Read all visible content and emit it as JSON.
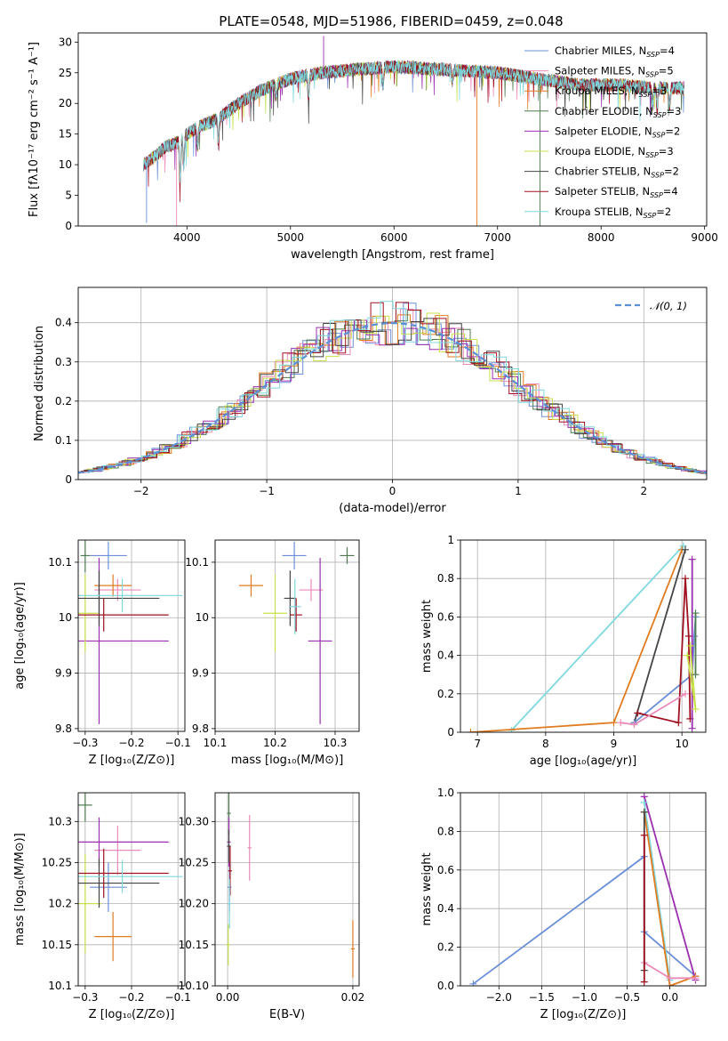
{
  "title": "PLATE=0548, MJD=51986, FIBERID=0459, z=0.048",
  "colors": {
    "Chabrier MILES": "#6a8fd8",
    "Salpeter MILES": "#e98bb8",
    "Kroupa MILES": "#e07b20",
    "Chabrier ELODIE": "#4f7a4f",
    "Salpeter ELODIE": "#9b2fb0",
    "Kroupa ELODIE": "#c8e04a",
    "Chabrier STELIB": "#444444",
    "Salpeter STELIB": "#a01020",
    "Kroupa STELIB": "#7fd8de",
    "normal": "#5b8fd6"
  },
  "legend_spectrum": [
    {
      "pre": "Chabrier MILES, N",
      "sub": "SSP",
      "post": "=4"
    },
    {
      "pre": "Salpeter MILES, N",
      "sub": "SSP",
      "post": "=5"
    },
    {
      "pre": "Kroupa MILES, N",
      "sub": "SSP",
      "post": "=3"
    },
    {
      "pre": "Chabrier ELODIE, N",
      "sub": "SSP",
      "post": "=3"
    },
    {
      "pre": "Salpeter ELODIE, N",
      "sub": "SSP",
      "post": "=2"
    },
    {
      "pre": "Kroupa ELODIE, N",
      "sub": "SSP",
      "post": "=3"
    },
    {
      "pre": "Chabrier STELIB, N",
      "sub": "SSP",
      "post": "=2"
    },
    {
      "pre": "Salpeter STELIB, N",
      "sub": "SSP",
      "post": "=4"
    },
    {
      "pre": "Kroupa STELIB, N",
      "sub": "SSP",
      "post": "=2"
    }
  ],
  "chart_data": [
    {
      "id": "spectrum",
      "type": "line",
      "xlabel": "wavelength [Angstrom, rest frame]",
      "ylabel": "Flux [fλ10⁻¹⁷ erg cm⁻² s⁻¹ A⁻¹]",
      "xlim": [
        2950,
        9020
      ],
      "ylim": [
        0,
        31.5
      ],
      "xticks": [
        4000,
        5000,
        6000,
        7000,
        8000,
        9000
      ],
      "yticks": [
        0,
        5,
        10,
        15,
        20,
        25,
        30
      ],
      "continuum": [
        [
          3580,
          10
        ],
        [
          3700,
          11.5
        ],
        [
          3800,
          13
        ],
        [
          3900,
          13.5
        ],
        [
          4000,
          15
        ],
        [
          4100,
          16
        ],
        [
          4300,
          17.5
        ],
        [
          4500,
          20
        ],
        [
          4700,
          22
        ],
        [
          5000,
          24
        ],
        [
          5300,
          25
        ],
        [
          5600,
          25.5
        ],
        [
          6000,
          26
        ],
        [
          6500,
          25.5
        ],
        [
          7000,
          25
        ],
        [
          7400,
          24
        ],
        [
          7800,
          23
        ],
        [
          8200,
          23
        ],
        [
          8500,
          22.5
        ],
        [
          8800,
          22.5
        ]
      ],
      "absorption": [
        [
          3934,
          6.5
        ],
        [
          3969,
          5
        ],
        [
          4102,
          3
        ],
        [
          4304,
          4
        ],
        [
          4861,
          2
        ],
        [
          5175,
          4
        ],
        [
          5893,
          3
        ],
        [
          6563,
          2
        ],
        [
          8498,
          3
        ],
        [
          8542,
          3.5
        ],
        [
          8662,
          3
        ]
      ],
      "spikes": [
        [
          3610,
          0.5
        ],
        [
          3900,
          0
        ],
        [
          6800,
          0
        ],
        [
          7410,
          0
        ],
        [
          5320,
          31
        ]
      ]
    },
    {
      "id": "residuals",
      "type": "histogram",
      "xlabel": "(data-model)/error",
      "ylabel": "Normed distribution",
      "xlim": [
        -2.5,
        2.5
      ],
      "ylim": [
        0,
        0.49
      ],
      "xticks": [
        -2,
        -1,
        0,
        1,
        2
      ],
      "yticks": [
        0.0,
        0.1,
        0.2,
        0.3,
        0.4
      ],
      "bin_width": 0.105,
      "reference": {
        "label": "𝒩(0, 1)",
        "mean": 0,
        "sigma": 1
      }
    },
    {
      "id": "age_vs_Z",
      "type": "scatter",
      "xlabel": "Z [log₁₀(Z/Z⊙)]",
      "ylabel": "age  [log₁₀(age/yr)]",
      "xlim": [
        -0.315,
        -0.085
      ],
      "ylim": [
        9.795,
        10.14
      ],
      "xticks": [
        -0.3,
        -0.2,
        -0.1
      ],
      "yticks": [
        9.8,
        9.9,
        10.0,
        10.1
      ],
      "points": [
        {
          "s": "Chabrier MILES",
          "x": -0.25,
          "y": 10.112,
          "ex": 0.04,
          "ey": 0.025
        },
        {
          "s": "Salpeter MILES",
          "x": -0.23,
          "y": 10.05,
          "ex": 0.05,
          "ey": 0.02
        },
        {
          "s": "Kroupa MILES",
          "x": -0.24,
          "y": 10.058,
          "ex": 0.04,
          "ey": 0.02
        },
        {
          "s": "Chabrier ELODIE",
          "x": -0.3,
          "y": 10.112,
          "ex": 0.01,
          "ey": 0.03
        },
        {
          "s": "Salpeter ELODIE",
          "x": -0.27,
          "y": 9.958,
          "ex": 0.15,
          "ey": 0.15
        },
        {
          "s": "Kroupa ELODIE",
          "x": -0.3,
          "y": 10.008,
          "ex": 0.03,
          "ey": 0.07
        },
        {
          "s": "Chabrier STELIB",
          "x": -0.27,
          "y": 10.035,
          "ex": 0.13,
          "ey": 0.05
        },
        {
          "s": "Salpeter STELIB",
          "x": -0.26,
          "y": 10.005,
          "ex": 0.14,
          "ey": 0.03
        },
        {
          "s": "Kroupa STELIB",
          "x": -0.22,
          "y": 10.04,
          "ex": 0.13,
          "ey": 0.03
        }
      ]
    },
    {
      "id": "age_vs_mass",
      "type": "scatter",
      "xlabel": "mass [log₁₀(M/M⊙)]",
      "ylabel": "",
      "xlim": [
        10.1,
        10.34
      ],
      "ylim": [
        9.795,
        10.14
      ],
      "xticks": [
        10.1,
        10.2,
        10.3
      ],
      "yticks": [
        9.8,
        9.9,
        10.0,
        10.1
      ],
      "points": [
        {
          "s": "Chabrier MILES",
          "x": 10.232,
          "y": 10.112,
          "ex": 0.02,
          "ey": 0.025
        },
        {
          "s": "Salpeter MILES",
          "x": 10.26,
          "y": 10.05,
          "ex": 0.02,
          "ey": 0.02
        },
        {
          "s": "Kroupa MILES",
          "x": 10.16,
          "y": 10.058,
          "ex": 0.02,
          "ey": 0.02
        },
        {
          "s": "Chabrier ELODIE",
          "x": 10.32,
          "y": 10.112,
          "ex": 0.012,
          "ey": 0.015
        },
        {
          "s": "Salpeter ELODIE",
          "x": 10.275,
          "y": 9.958,
          "ex": 0.02,
          "ey": 0.15
        },
        {
          "s": "Kroupa ELODIE",
          "x": 10.2,
          "y": 10.008,
          "ex": 0.02,
          "ey": 0.07
        },
        {
          "s": "Chabrier STELIB",
          "x": 10.225,
          "y": 10.035,
          "ex": 0.01,
          "ey": 0.05
        },
        {
          "s": "Salpeter STELIB",
          "x": 10.235,
          "y": 10.005,
          "ex": 0.01,
          "ey": 0.03
        },
        {
          "s": "Kroupa STELIB",
          "x": 10.233,
          "y": 10.02,
          "ex": 0.01,
          "ey": 0.05
        }
      ]
    },
    {
      "id": "weight_vs_age",
      "type": "line",
      "xlabel": "age  [log₁₀(age/yr)]",
      "ylabel": "mass weight",
      "xlim": [
        6.75,
        10.35
      ],
      "ylim": [
        0,
        1.0
      ],
      "xticks": [
        7,
        8,
        9,
        10
      ],
      "yticks": [
        0.0,
        0.2,
        0.4,
        0.6,
        0.8,
        1.0
      ],
      "series": [
        {
          "s": "Kroupa STELIB",
          "x": [
            7.5,
            10.02
          ],
          "y": [
            0.01,
            0.97
          ]
        },
        {
          "s": "Kroupa MILES",
          "x": [
            6.9,
            9.0,
            10.0
          ],
          "y": [
            0.0,
            0.05,
            0.95
          ]
        },
        {
          "s": "Chabrier STELIB",
          "x": [
            9.3,
            10.05
          ],
          "y": [
            0.05,
            0.95
          ]
        },
        {
          "s": "Chabrier MILES",
          "x": [
            9.3,
            10.15,
            10.18,
            10.2
          ],
          "y": [
            0.05,
            0.3,
            0.5,
            0.6
          ]
        },
        {
          "s": "Salpeter STELIB",
          "x": [
            9.35,
            9.95,
            10.05,
            10.1,
            10.12
          ],
          "y": [
            0.1,
            0.05,
            0.8,
            0.5,
            0.07
          ]
        },
        {
          "s": "Salpeter MILES",
          "x": [
            9.1,
            9.3,
            10.05
          ],
          "y": [
            0.05,
            0.04,
            0.2
          ]
        },
        {
          "s": "Salpeter ELODIE",
          "x": [
            10.15,
            10.15
          ],
          "y": [
            0.02,
            0.9
          ]
        },
        {
          "s": "Kroupa ELODIE",
          "x": [
            10.12,
            10.2,
            10.08
          ],
          "y": [
            0.45,
            0.12,
            0.4
          ]
        },
        {
          "s": "Chabrier ELODIE",
          "x": [
            10.2,
            10.2
          ],
          "y": [
            0.3,
            0.62
          ]
        }
      ]
    },
    {
      "id": "mass_vs_Z",
      "type": "scatter",
      "xlabel": "Z [log₁₀(Z/Z⊙)]",
      "ylabel": "mass [log₁₀(M/M⊙)]",
      "xlim": [
        -0.315,
        -0.085
      ],
      "ylim": [
        10.1,
        10.335
      ],
      "xticks": [
        -0.3,
        -0.2,
        -0.1
      ],
      "yticks": [
        10.1,
        10.15,
        10.2,
        10.25,
        10.3
      ],
      "points": [
        {
          "s": "Chabrier MILES",
          "x": -0.25,
          "y": 10.22,
          "ex": 0.04,
          "ey": 0.03
        },
        {
          "s": "Salpeter MILES",
          "x": -0.23,
          "y": 10.265,
          "ex": 0.05,
          "ey": 0.03
        },
        {
          "s": "Kroupa MILES",
          "x": -0.24,
          "y": 10.16,
          "ex": 0.04,
          "ey": 0.03
        },
        {
          "s": "Chabrier ELODIE",
          "x": -0.3,
          "y": 10.32,
          "ex": 0.015,
          "ey": 0.02
        },
        {
          "s": "Salpeter ELODIE",
          "x": -0.27,
          "y": 10.275,
          "ex": 0.15,
          "ey": 0.03
        },
        {
          "s": "Kroupa ELODIE",
          "x": -0.3,
          "y": 10.2,
          "ex": 0.035,
          "ey": 0.06
        },
        {
          "s": "Chabrier STELIB",
          "x": -0.27,
          "y": 10.225,
          "ex": 0.13,
          "ey": 0.03
        },
        {
          "s": "Salpeter STELIB",
          "x": -0.26,
          "y": 10.237,
          "ex": 0.14,
          "ey": 0.03
        },
        {
          "s": "Kroupa STELIB",
          "x": -0.22,
          "y": 10.233,
          "ex": 0.13,
          "ey": 0.02
        }
      ]
    },
    {
      "id": "mass_vs_EBV",
      "type": "scatter",
      "xlabel": "E(B-V)",
      "ylabel": "",
      "xlim": [
        -0.002,
        0.021
      ],
      "ylim": [
        10.1,
        10.335
      ],
      "xticks": [
        0.0,
        0.02
      ],
      "tickfmt": 2,
      "yticks": [
        10.1,
        10.15,
        10.2,
        10.25,
        10.3
      ],
      "points": [
        {
          "s": "Chabrier MILES",
          "x": 0.0003,
          "y": 10.22,
          "ex": 0.0003,
          "ey": 0.03
        },
        {
          "s": "Salpeter MILES",
          "x": 0.0035,
          "y": 10.268,
          "ex": 0.0003,
          "ey": 0.04
        },
        {
          "s": "Kroupa MILES",
          "x": 0.02,
          "y": 10.145,
          "ex": 0.0003,
          "ey": 0.035
        },
        {
          "s": "Chabrier ELODIE",
          "x": 0.0002,
          "y": 10.31,
          "ex": 0.0003,
          "ey": 0.025
        },
        {
          "s": "Salpeter ELODIE",
          "x": 0.0002,
          "y": 10.275,
          "ex": 0.0003,
          "ey": 0.03
        },
        {
          "s": "Kroupa ELODIE",
          "x": 0.0001,
          "y": 10.15,
          "ex": 0.0003,
          "ey": 0.025
        },
        {
          "s": "Chabrier STELIB",
          "x": 0.0002,
          "y": 10.27,
          "ex": 0.0003,
          "ey": 0.02
        },
        {
          "s": "Salpeter STELIB",
          "x": 0.0004,
          "y": 10.24,
          "ex": 0.0003,
          "ey": 0.03
        },
        {
          "s": "Kroupa STELIB",
          "x": 0.0003,
          "y": 10.2,
          "ex": 0.0003,
          "ey": 0.03
        }
      ]
    },
    {
      "id": "weight_vs_Z",
      "type": "line",
      "xlabel": "Z [log₁₀(Z/Z⊙)]",
      "ylabel": "mass weight",
      "xlim": [
        -2.45,
        0.42
      ],
      "ylim": [
        0,
        1.0
      ],
      "xticks": [
        -2.0,
        -1.5,
        -1.0,
        -0.5,
        0.0
      ],
      "tickfmt": 1,
      "yticks": [
        0.0,
        0.2,
        0.4,
        0.6,
        0.8,
        1.0
      ],
      "series": [
        {
          "s": "Chabrier MILES",
          "x": [
            -2.3,
            -0.3,
            -0.3,
            0.3
          ],
          "y": [
            0.01,
            0.67,
            0.28,
            0.05
          ]
        },
        {
          "s": "Salpeter ELODIE",
          "x": [
            -0.3,
            0.3
          ],
          "y": [
            0.98,
            0.03
          ]
        },
        {
          "s": "Kroupa STELIB",
          "x": [
            -0.3,
            0.0
          ],
          "y": [
            0.95,
            0.03
          ]
        },
        {
          "s": "Kroupa MILES",
          "x": [
            -0.3,
            0.0,
            0.3
          ],
          "y": [
            0.9,
            0.0,
            0.05
          ]
        },
        {
          "s": "Salpeter MILES",
          "x": [
            -0.3,
            0.0,
            0.3
          ],
          "y": [
            0.12,
            0.04,
            0.04
          ]
        },
        {
          "s": "Chabrier STELIB",
          "x": [
            -0.3,
            -0.3
          ],
          "y": [
            0.08,
            0.9
          ]
        },
        {
          "s": "Salpeter STELIB",
          "x": [
            -0.3,
            -0.3
          ],
          "y": [
            0.02,
            0.78
          ]
        }
      ]
    }
  ]
}
